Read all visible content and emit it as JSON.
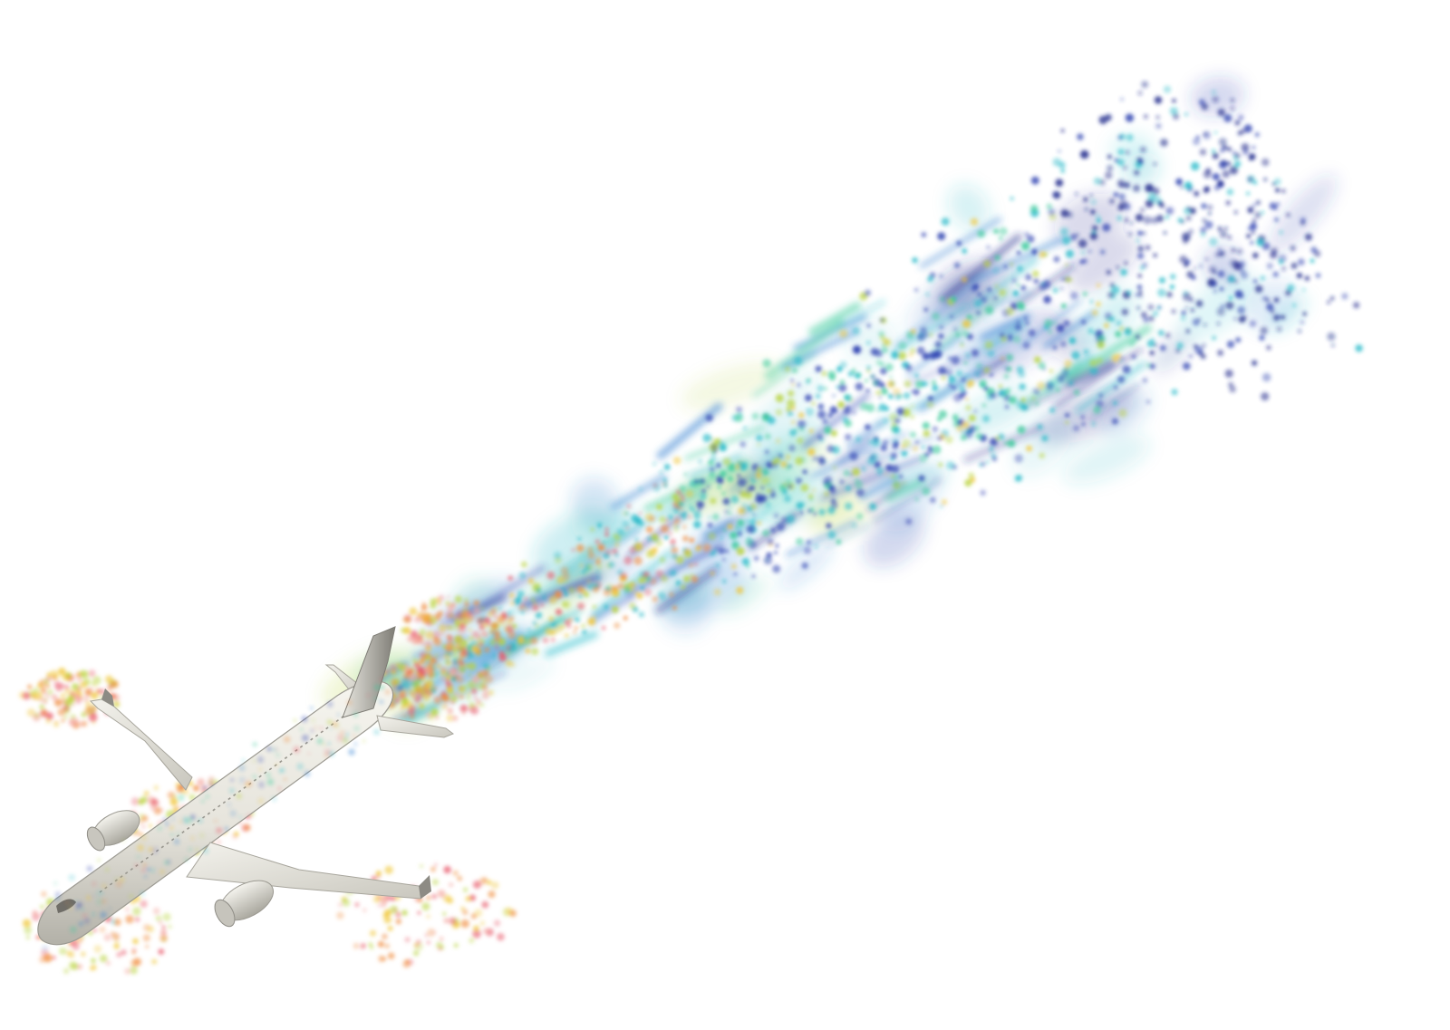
{
  "scene": {
    "subject": "airplane",
    "subject_colors": {
      "fuselage": "#ecebe4",
      "fuselage_shade": "#b9b7ae",
      "fuselage_dark": "#8c8a82",
      "window_line": "#9a9890"
    },
    "wake_palette": [
      "#1f2a8c",
      "#2b3fb0",
      "#2f7fd0",
      "#22b8c8",
      "#38c99a",
      "#b8d23a",
      "#f0c430",
      "#f08a3a",
      "#e85a6a",
      "#f4a8a0"
    ]
  }
}
